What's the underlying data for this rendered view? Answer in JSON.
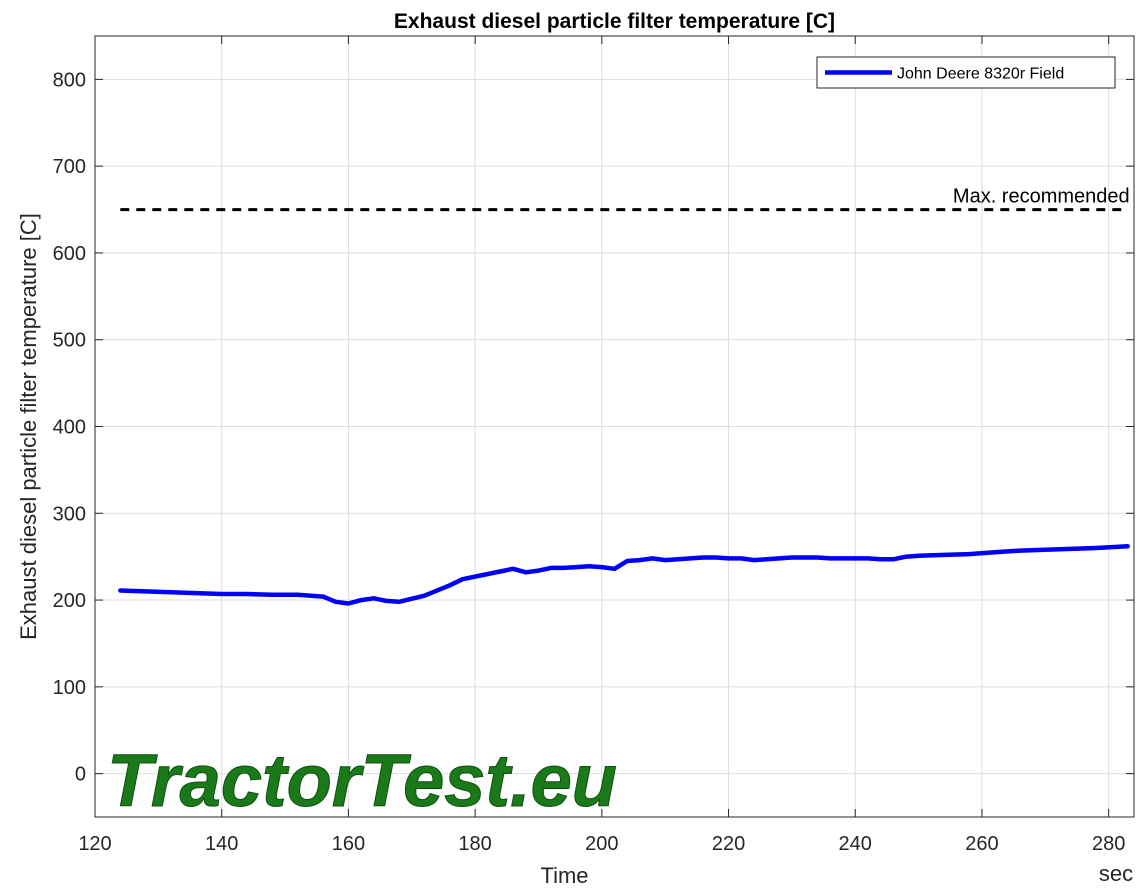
{
  "chart_data": {
    "type": "line",
    "title": "Exhaust diesel particle filter temperature [C]",
    "xlabel": "Time",
    "x_unit": "sec",
    "ylabel": "Exhaust diesel particle filter temperature [C]",
    "xlim": [
      120,
      284
    ],
    "ylim": [
      -50,
      850
    ],
    "xticks": [
      120,
      140,
      160,
      180,
      200,
      220,
      240,
      260,
      280
    ],
    "yticks": [
      0,
      100,
      200,
      300,
      400,
      500,
      600,
      700,
      800
    ],
    "grid": true,
    "legend_position": "top-right",
    "series": [
      {
        "name": "John Deere 8320r Field",
        "color": "#0000ff",
        "x": [
          124,
          128,
          132,
          136,
          140,
          144,
          148,
          152,
          156,
          158,
          160,
          162,
          164,
          166,
          168,
          172,
          176,
          178,
          182,
          186,
          188,
          190,
          192,
          194,
          196,
          198,
          200,
          202,
          204,
          206,
          208,
          210,
          212,
          214,
          216,
          218,
          220,
          222,
          224,
          226,
          228,
          230,
          232,
          234,
          236,
          238,
          240,
          242,
          244,
          246,
          248,
          250,
          254,
          258,
          262,
          266,
          270,
          274,
          278,
          283
        ],
        "y": [
          211,
          210,
          209,
          208,
          207,
          207,
          206,
          206,
          204,
          198,
          196,
          200,
          202,
          199,
          198,
          205,
          217,
          224,
          230,
          236,
          232,
          234,
          237,
          237,
          238,
          239,
          238,
          236,
          245,
          246,
          248,
          246,
          247,
          248,
          249,
          249,
          248,
          248,
          246,
          247,
          248,
          249,
          249,
          249,
          248,
          248,
          248,
          248,
          247,
          247,
          250,
          251,
          252,
          253,
          255,
          257,
          258,
          259,
          260,
          262
        ]
      },
      {
        "name": "Max. recommended",
        "color": "#000000",
        "style": "dashed",
        "x": [
          124,
          283
        ],
        "y": [
          650,
          650
        ]
      }
    ]
  },
  "branding": {
    "logo_text": "TractorTest.eu",
    "logo_color": "#1a7a1a"
  }
}
